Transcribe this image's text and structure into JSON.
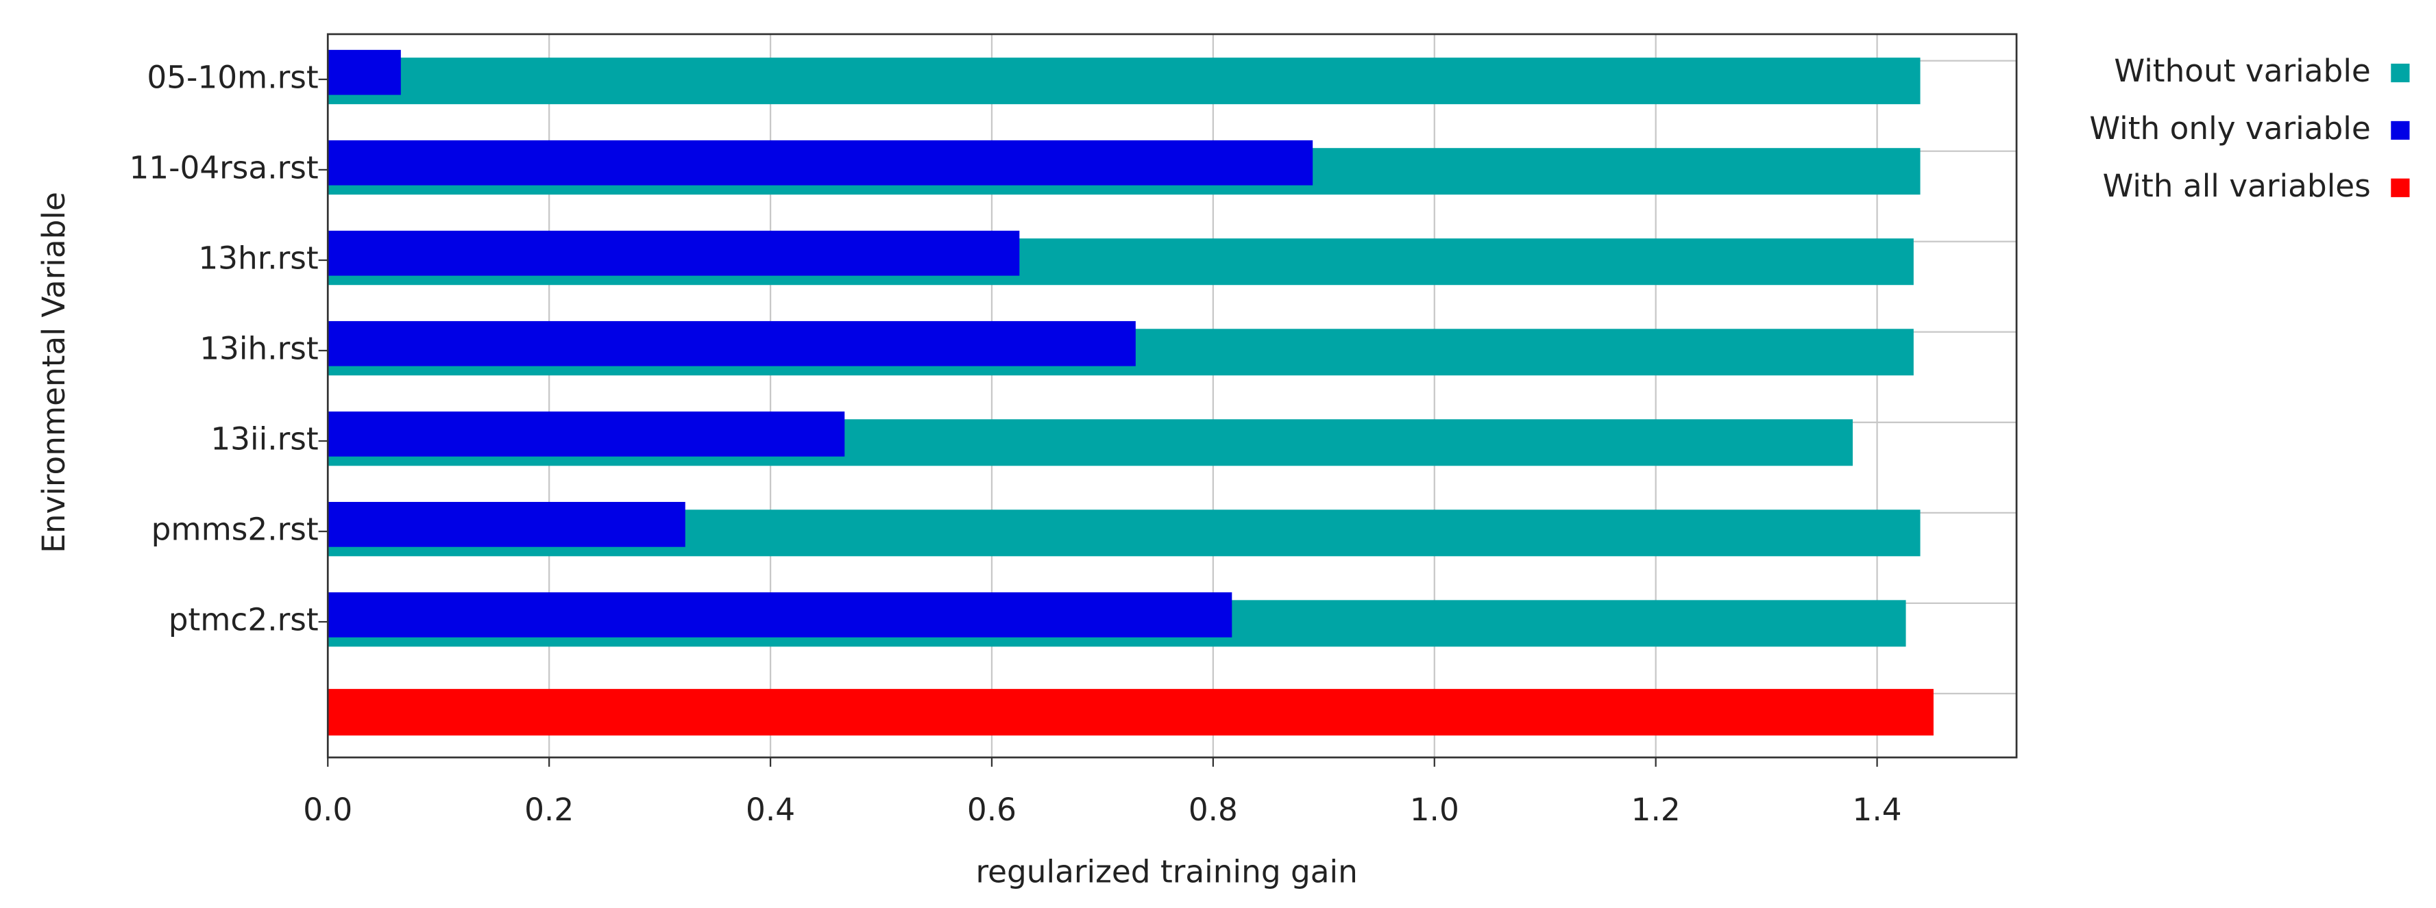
{
  "chart_data": {
    "type": "bar",
    "orientation": "horizontal",
    "xlabel": "regularized training gain",
    "ylabel": "Environmental Variable",
    "categories": [
      "05-10m.rst",
      "11-04rsa.rst",
      "13hr.rst",
      "13ih.rst",
      "13ii.rst",
      "pmms2.rst",
      "ptmc2.rst",
      null
    ],
    "series": [
      {
        "name": "Without variable",
        "color": "#00a5a5",
        "values": [
          1.439,
          1.439,
          1.433,
          1.433,
          1.378,
          1.439,
          1.426,
          null
        ]
      },
      {
        "name": "With only variable",
        "color": "#0000e6",
        "values": [
          0.066,
          0.89,
          0.625,
          0.73,
          0.467,
          0.323,
          0.817,
          null
        ]
      },
      {
        "name": "With all variables",
        "color": "#ff0000",
        "values": [
          null,
          null,
          null,
          null,
          null,
          null,
          null,
          1.451
        ]
      }
    ],
    "xlim": [
      0,
      1.526
    ],
    "xticks": [
      {
        "value": 0,
        "label": "0.0"
      },
      0.2,
      0.4,
      0.6,
      0.8,
      {
        "value": 1,
        "label": "1.0"
      },
      1.2,
      1.4
    ],
    "grid": true,
    "legend": "right"
  }
}
